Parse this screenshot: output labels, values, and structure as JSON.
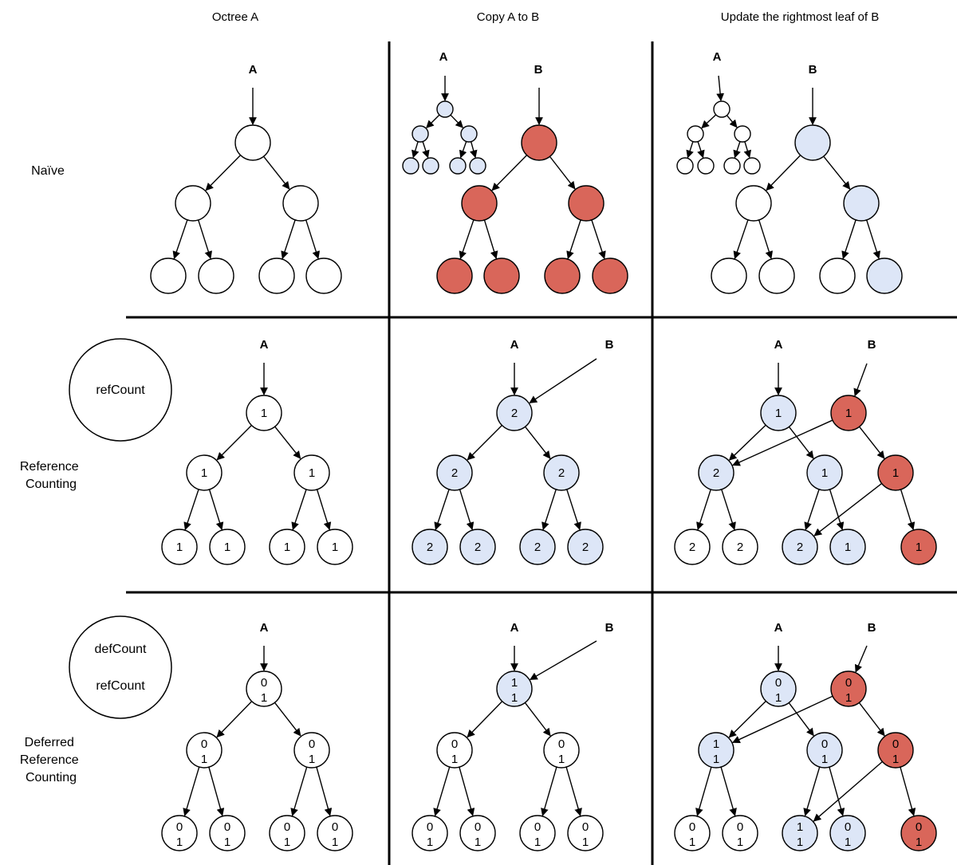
{
  "columns": [
    "Octree A",
    "Copy A to B",
    "Update the rightmost leaf of B"
  ],
  "rows": {
    "naive": {
      "label": [
        "Naïve"
      ]
    },
    "refcount": {
      "label": [
        "Reference",
        "Counting"
      ],
      "legend": [
        "refCount"
      ]
    },
    "deferred": {
      "label": [
        "Deferred",
        "Reference",
        "Counting"
      ],
      "legend": [
        "defCount",
        "refCount"
      ]
    }
  },
  "pointers": {
    "a": "A",
    "b": "B"
  },
  "colors": {
    "white": "#ffffff",
    "blue": "#dde6f7",
    "red": "#d9665a",
    "stroke": "#000000"
  },
  "nodes": {
    "naive_a": {
      "root": [],
      "int": [
        [],
        []
      ],
      "leaf": [
        [],
        [],
        [],
        []
      ]
    },
    "naive_copy_a": {},
    "naive_copy_b": {
      "root": [],
      "int": [
        [],
        []
      ],
      "leaf": [
        [],
        [],
        [],
        []
      ]
    },
    "ref_a": {
      "root": [
        "1"
      ],
      "int": [
        [
          "1"
        ],
        [
          "1"
        ]
      ],
      "leaf": [
        [
          "1"
        ],
        [
          "1"
        ],
        [
          "1"
        ],
        [
          "1"
        ]
      ]
    },
    "ref_copy": {
      "root": [
        "2"
      ],
      "int": [
        [
          "2"
        ],
        [
          "2"
        ]
      ],
      "leaf": [
        [
          "2"
        ],
        [
          "2"
        ],
        [
          "2"
        ],
        [
          "2"
        ]
      ]
    },
    "ref_upd": {
      "rootA": [
        "1"
      ],
      "rootB": [
        "1"
      ],
      "intA1": [
        "2"
      ],
      "intA2": [
        "1"
      ],
      "intB": [
        "1"
      ],
      "leaf": [
        [
          "2"
        ],
        [
          "2"
        ],
        [
          "2"
        ],
        [
          "1"
        ],
        [
          "1"
        ]
      ]
    },
    "def_a": {
      "root": [
        "0",
        "1"
      ],
      "int": [
        [
          "0",
          "1"
        ],
        [
          "0",
          "1"
        ]
      ],
      "leaf": [
        [
          "0",
          "1"
        ],
        [
          "0",
          "1"
        ],
        [
          "0",
          "1"
        ],
        [
          "0",
          "1"
        ]
      ]
    },
    "def_copy": {
      "root": [
        "1",
        "1"
      ],
      "int": [
        [
          "0",
          "1"
        ],
        [
          "0",
          "1"
        ]
      ],
      "leaf": [
        [
          "0",
          "1"
        ],
        [
          "0",
          "1"
        ],
        [
          "0",
          "1"
        ],
        [
          "0",
          "1"
        ]
      ]
    },
    "def_upd": {
      "rootA": [
        "0",
        "1"
      ],
      "rootB": [
        "0",
        "1"
      ],
      "intA1": [
        "1",
        "1"
      ],
      "intA2": [
        "0",
        "1"
      ],
      "intB": [
        "0",
        "1"
      ],
      "leaf": [
        [
          "0",
          "1"
        ],
        [
          "0",
          "1"
        ],
        [
          "1",
          "1"
        ],
        [
          "0",
          "1"
        ],
        [
          "0",
          "1"
        ]
      ]
    }
  }
}
